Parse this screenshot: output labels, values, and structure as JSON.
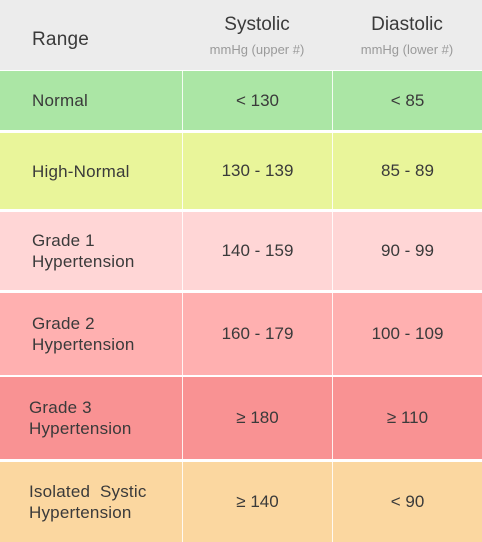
{
  "header": {
    "range": "Range",
    "systolic": "Systolic",
    "systolic_unit": "mmHg (upper #)",
    "diastolic": "Diastolic",
    "diastolic_unit": "mmHg (lower #)"
  },
  "rows": [
    {
      "range_line1": "Normal",
      "range_line2": "",
      "systolic": "< 130",
      "diastolic": "< 85",
      "color": "#abe6a5"
    },
    {
      "range_line1": "High-Normal",
      "range_line2": "",
      "systolic": "130 - 139",
      "diastolic": "85 - 89",
      "color": "#e9f59a"
    },
    {
      "range_line1": "Grade 1",
      "range_line2": "Hypertension",
      "systolic": "140 - 159",
      "diastolic": "90 - 99",
      "color": "#ffd6d6"
    },
    {
      "range_line1": "Grade 2",
      "range_line2": "Hypertension",
      "systolic": "160 - 179",
      "diastolic": "100 - 109",
      "color": "#ffb0b0"
    },
    {
      "range_line1": "Grade 3",
      "range_line2": "Hypertension",
      "systolic": "≥ 180",
      "diastolic": "≥ 110",
      "color": "#f99293"
    },
    {
      "range_line1": "Isolated  Systic",
      "range_line2": "Hypertension",
      "systolic": "≥ 140",
      "diastolic": "< 90",
      "color": "#fbd7a0"
    }
  ]
}
